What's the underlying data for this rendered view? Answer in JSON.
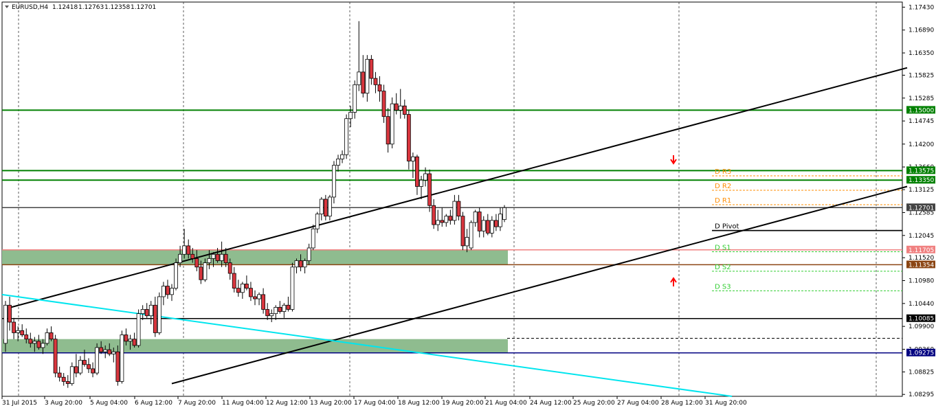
{
  "header": {
    "symbol": "EURUSD,H4",
    "open": "1.12418",
    "high": "1.12763",
    "low": "1.12358",
    "close": "1.12701"
  },
  "colors": {
    "up_body": "#ffffff",
    "down_body": "#d9363e",
    "wick": "#000000",
    "green_line": "#008000",
    "zone_fill": "#8fbc8f",
    "resistance_red": "#f08080",
    "support_brown": "#8b4513",
    "navy": "#000080",
    "cyan": "#00e5ee",
    "pivot_orange": "#ff8c00",
    "pivot_green": "#32cd32"
  },
  "chart_data": {
    "type": "candlestick",
    "ylim": [
      1.0825,
      1.1755
    ],
    "y_ticks": [
      "1.17430",
      "1.16890",
      "1.16350",
      "1.15825",
      "1.15285",
      "1.14745",
      "1.14200",
      "1.13660",
      "1.13125",
      "1.12585",
      "1.12045",
      "1.11520",
      "1.10980",
      "1.10440",
      "1.09900",
      "1.09360",
      "1.08825",
      "1.08295"
    ],
    "x_ticks": [
      "31 Jul 2015",
      "3 Aug 20:00",
      "5 Aug 04:00",
      "6 Aug 12:00",
      "7 Aug 20:00",
      "11 Aug 04:00",
      "12 Aug 12:00",
      "13 Aug 20:00",
      "17 Aug 04:00",
      "18 Aug 12:00",
      "19 Aug 20:00",
      "21 Aug 04:00",
      "24 Aug 12:00",
      "25 Aug 20:00",
      "27 Aug 04:00",
      "28 Aug 12:00",
      "31 Aug 20:00"
    ],
    "levels": [
      {
        "value": 1.15,
        "label": "1.15000",
        "color": "#008000"
      },
      {
        "value": 1.13575,
        "label": "1.13575",
        "color": "#008000"
      },
      {
        "value": 1.1335,
        "label": "1.13350",
        "color": "#008000"
      },
      {
        "value": 1.12701,
        "label": "1.12701",
        "color": "#444444"
      },
      {
        "value": 1.11705,
        "label": "1.11705",
        "color": "#f08080"
      },
      {
        "value": 1.11354,
        "label": "1.11354",
        "color": "#8b4513"
      },
      {
        "value": 1.10085,
        "label": "1.10085",
        "color": "#000000"
      },
      {
        "value": 1.09275,
        "label": "1.09275",
        "color": "#000080"
      }
    ],
    "zones": [
      {
        "from": 1.1135,
        "to": 1.117
      },
      {
        "from": 1.0927,
        "to": 1.096
      }
    ],
    "pivots": [
      {
        "label": "D R3",
        "value": 1.1345,
        "color": "#ff8c00"
      },
      {
        "label": "D R2",
        "value": 1.1311,
        "color": "#ff8c00"
      },
      {
        "label": "D R1",
        "value": 1.1277,
        "color": "#ff8c00"
      },
      {
        "label": "D Pivot",
        "value": 1.1216,
        "color": "#000000"
      },
      {
        "label": "D S1",
        "value": 1.1166,
        "color": "#32cd32"
      },
      {
        "label": "D S2",
        "value": 1.112,
        "color": "#32cd32"
      },
      {
        "label": "D S3",
        "value": 1.1074,
        "color": "#32cd32"
      }
    ],
    "candles": [
      [
        1.095,
        1.105,
        1.093,
        1.104
      ],
      [
        1.104,
        1.106,
        1.098,
        1.1
      ],
      [
        1.1,
        1.101,
        1.096,
        1.0975
      ],
      [
        1.0975,
        1.099,
        1.0955,
        1.098
      ],
      [
        1.098,
        1.0995,
        1.0965,
        1.097
      ],
      [
        1.097,
        1.0985,
        1.095,
        1.096
      ],
      [
        1.096,
        1.0975,
        1.094,
        1.095
      ],
      [
        1.095,
        1.0965,
        1.093,
        1.0955
      ],
      [
        1.0955,
        1.097,
        1.0935,
        1.094
      ],
      [
        1.094,
        1.096,
        1.0925,
        1.095
      ],
      [
        1.095,
        1.0985,
        1.0945,
        1.0975
      ],
      [
        1.0975,
        1.099,
        1.0955,
        1.096
      ],
      [
        1.096,
        1.097,
        1.087,
        1.088
      ],
      [
        1.088,
        1.0895,
        1.086,
        1.087
      ],
      [
        1.087,
        1.088,
        1.085,
        1.086
      ],
      [
        1.086,
        1.0875,
        1.0845,
        1.0855
      ],
      [
        1.0855,
        1.0905,
        1.085,
        1.0895
      ],
      [
        1.0895,
        1.0925,
        1.087,
        1.088
      ],
      [
        1.088,
        1.092,
        1.0875,
        1.091
      ],
      [
        1.091,
        1.0935,
        1.0895,
        1.09
      ],
      [
        1.09,
        1.0915,
        1.088,
        1.089
      ],
      [
        1.089,
        1.0905,
        1.087,
        1.088
      ],
      [
        1.088,
        1.095,
        1.0875,
        1.094
      ],
      [
        1.094,
        1.0955,
        1.0925,
        1.093
      ],
      [
        1.093,
        1.0945,
        1.0915,
        1.0935
      ],
      [
        1.0935,
        1.095,
        1.092,
        1.0925
      ],
      [
        1.0925,
        1.094,
        1.0905,
        1.093
      ],
      [
        1.093,
        1.0945,
        1.085,
        1.086
      ],
      [
        1.086,
        1.098,
        1.0855,
        1.097
      ],
      [
        1.097,
        1.0985,
        1.0945,
        1.0955
      ],
      [
        1.0955,
        1.097,
        1.0935,
        1.096
      ],
      [
        1.096,
        1.0975,
        1.094,
        1.0945
      ],
      [
        1.0945,
        1.103,
        1.094,
        1.102
      ],
      [
        1.102,
        1.104,
        1.1005,
        1.103
      ],
      [
        1.103,
        1.1045,
        1.101,
        1.1015
      ],
      [
        1.1015,
        1.105,
        1.0995,
        1.104
      ],
      [
        1.104,
        1.106,
        1.0965,
        1.0975
      ],
      [
        1.0975,
        1.107,
        1.097,
        1.106
      ],
      [
        1.106,
        1.1095,
        1.104,
        1.1085
      ],
      [
        1.1085,
        1.11,
        1.1055,
        1.1065
      ],
      [
        1.1065,
        1.109,
        1.105,
        1.108
      ],
      [
        1.108,
        1.115,
        1.1075,
        1.114
      ],
      [
        1.114,
        1.118,
        1.113,
        1.116
      ],
      [
        1.116,
        1.122,
        1.115,
        1.118
      ],
      [
        1.118,
        1.1195,
        1.115,
        1.116
      ],
      [
        1.116,
        1.1175,
        1.114,
        1.115
      ],
      [
        1.115,
        1.117,
        1.112,
        1.113
      ],
      [
        1.113,
        1.1145,
        1.109,
        1.11
      ],
      [
        1.11,
        1.115,
        1.1095,
        1.114
      ],
      [
        1.114,
        1.117,
        1.1125,
        1.115
      ],
      [
        1.115,
        1.1165,
        1.113,
        1.116
      ],
      [
        1.116,
        1.1175,
        1.114,
        1.1145
      ],
      [
        1.1145,
        1.119,
        1.113,
        1.116
      ],
      [
        1.116,
        1.1175,
        1.113,
        1.114
      ],
      [
        1.114,
        1.115,
        1.11,
        1.1115
      ],
      [
        1.1115,
        1.113,
        1.107,
        1.108
      ],
      [
        1.108,
        1.11,
        1.106,
        1.107
      ],
      [
        1.107,
        1.1095,
        1.1055,
        1.109
      ],
      [
        1.109,
        1.111,
        1.1075,
        1.108
      ],
      [
        1.108,
        1.1095,
        1.105,
        1.106
      ],
      [
        1.106,
        1.1075,
        1.104,
        1.1055
      ],
      [
        1.1055,
        1.107,
        1.104,
        1.1065
      ],
      [
        1.1065,
        1.108,
        1.102,
        1.103
      ],
      [
        1.103,
        1.1045,
        1.1005,
        1.1015
      ],
      [
        1.1015,
        1.103,
        1.1,
        1.102
      ],
      [
        1.102,
        1.104,
        1.1005,
        1.1035
      ],
      [
        1.1035,
        1.105,
        1.102,
        1.1025
      ],
      [
        1.1025,
        1.1045,
        1.101,
        1.104
      ],
      [
        1.104,
        1.106,
        1.1025,
        1.103
      ],
      [
        1.103,
        1.114,
        1.1025,
        1.113
      ],
      [
        1.113,
        1.115,
        1.1115,
        1.1145
      ],
      [
        1.1145,
        1.116,
        1.112,
        1.113
      ],
      [
        1.113,
        1.115,
        1.1115,
        1.1145
      ],
      [
        1.1145,
        1.1185,
        1.1135,
        1.1175
      ],
      [
        1.1175,
        1.123,
        1.117,
        1.122
      ],
      [
        1.122,
        1.126,
        1.121,
        1.1255
      ],
      [
        1.1255,
        1.1295,
        1.124,
        1.129
      ],
      [
        1.129,
        1.13,
        1.124,
        1.125
      ],
      [
        1.125,
        1.13,
        1.124,
        1.1295
      ],
      [
        1.1295,
        1.138,
        1.128,
        1.137
      ],
      [
        1.137,
        1.1395,
        1.1355,
        1.1385
      ],
      [
        1.1385,
        1.1405,
        1.1375,
        1.1395
      ],
      [
        1.1395,
        1.149,
        1.1385,
        1.148
      ],
      [
        1.148,
        1.151,
        1.146,
        1.1495
      ],
      [
        1.1495,
        1.157,
        1.148,
        1.156
      ],
      [
        1.156,
        1.171,
        1.1545,
        1.159
      ],
      [
        1.159,
        1.163,
        1.153,
        1.154
      ],
      [
        1.154,
        1.163,
        1.152,
        1.162
      ],
      [
        1.162,
        1.163,
        1.156,
        1.1575
      ],
      [
        1.1575,
        1.159,
        1.154,
        1.156
      ],
      [
        1.156,
        1.158,
        1.152,
        1.1545
      ],
      [
        1.1545,
        1.156,
        1.147,
        1.1485
      ],
      [
        1.1485,
        1.1505,
        1.14,
        1.142
      ],
      [
        1.142,
        1.153,
        1.141,
        1.1515
      ],
      [
        1.1515,
        1.154,
        1.149,
        1.15
      ],
      [
        1.15,
        1.155,
        1.148,
        1.151
      ],
      [
        1.151,
        1.1525,
        1.148,
        1.149
      ],
      [
        1.149,
        1.15,
        1.136,
        1.138
      ],
      [
        1.138,
        1.14,
        1.134,
        1.139
      ],
      [
        1.139,
        1.1395,
        1.13,
        1.132
      ],
      [
        1.132,
        1.1345,
        1.129,
        1.1335
      ],
      [
        1.1335,
        1.1365,
        1.132,
        1.135
      ],
      [
        1.135,
        1.136,
        1.126,
        1.1275
      ],
      [
        1.1275,
        1.129,
        1.122,
        1.123
      ],
      [
        1.123,
        1.1265,
        1.1215,
        1.124
      ],
      [
        1.124,
        1.127,
        1.1225,
        1.1235
      ],
      [
        1.1235,
        1.1255,
        1.1225,
        1.125
      ],
      [
        1.125,
        1.1265,
        1.123,
        1.124
      ],
      [
        1.124,
        1.13,
        1.123,
        1.1285
      ],
      [
        1.1285,
        1.13,
        1.124,
        1.125
      ],
      [
        1.125,
        1.126,
        1.117,
        1.118
      ],
      [
        1.118,
        1.122,
        1.1165,
        1.12
      ],
      [
        1.1175,
        1.124,
        1.117,
        1.1235
      ],
      [
        1.1235,
        1.1265,
        1.1225,
        1.126
      ],
      [
        1.126,
        1.127,
        1.12,
        1.1215
      ],
      [
        1.1215,
        1.125,
        1.12,
        1.124
      ],
      [
        1.124,
        1.1255,
        1.1205,
        1.121
      ],
      [
        1.121,
        1.125,
        1.12,
        1.124
      ],
      [
        1.124,
        1.1255,
        1.1215,
        1.1225
      ],
      [
        1.1225,
        1.127,
        1.1215,
        1.1255
      ],
      [
        1.1242,
        1.1276,
        1.1236,
        1.127
      ]
    ]
  },
  "annotations": {
    "down_arrow": "down-arrow-icon",
    "up_arrow": "up-arrow-icon"
  }
}
